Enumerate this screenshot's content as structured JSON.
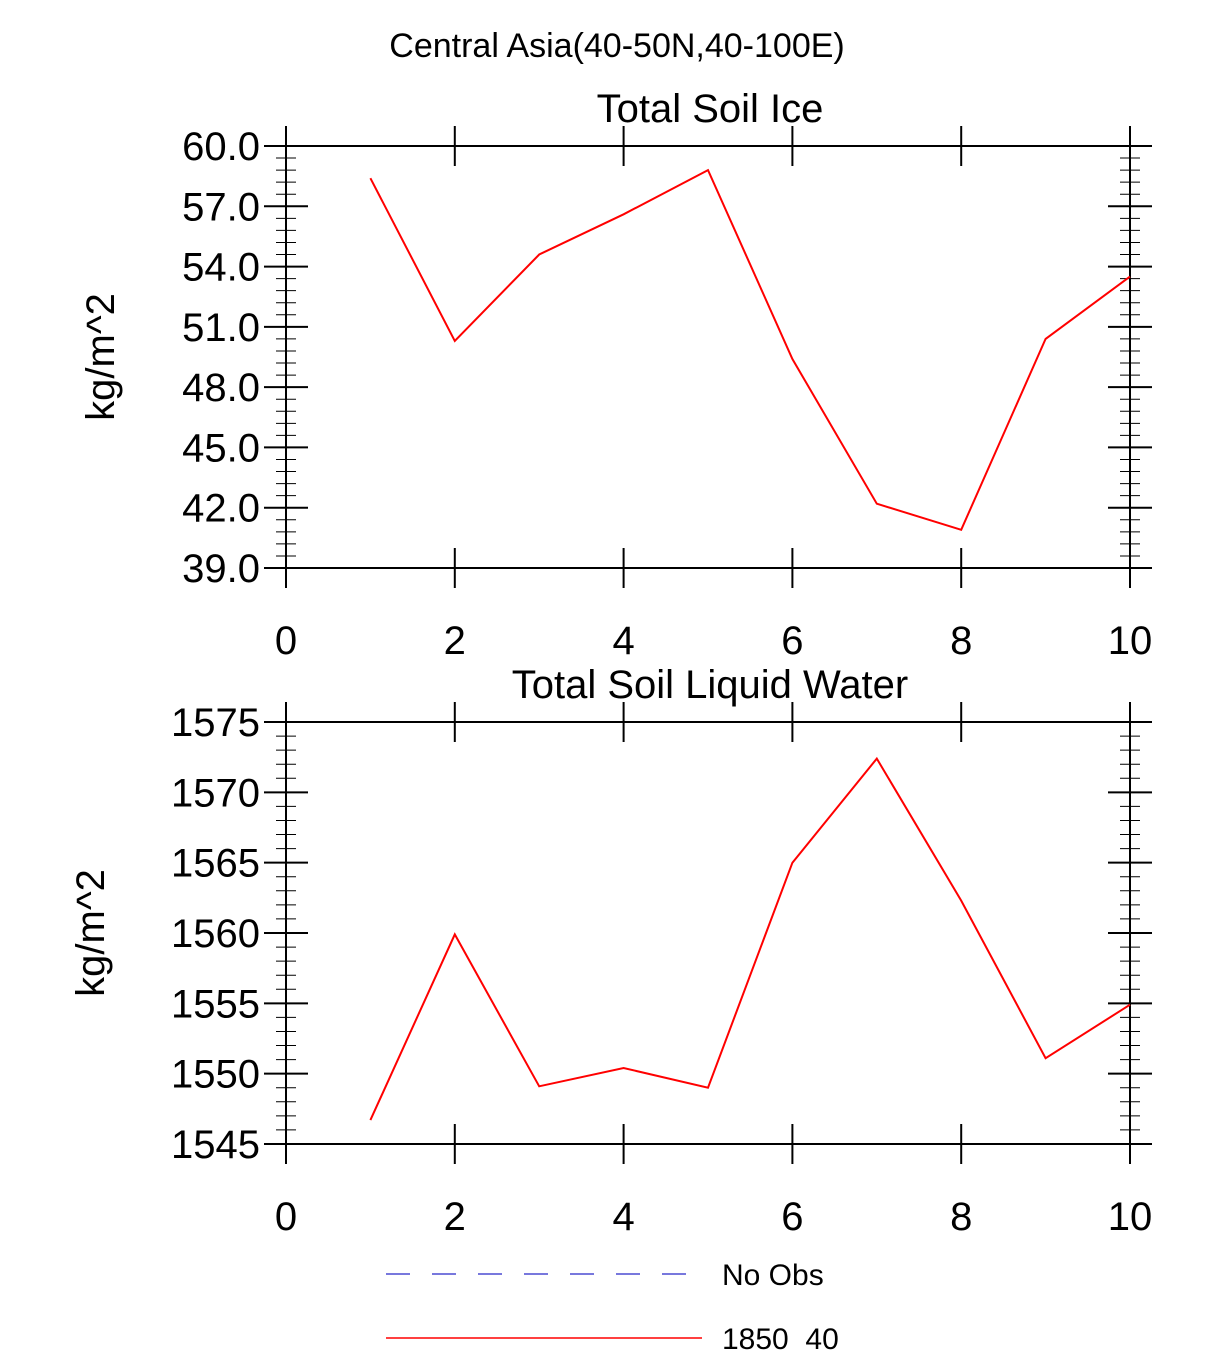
{
  "figure": {
    "suptitle": "Central Asia(40-50N,40-100E)"
  },
  "legend": {
    "entries": [
      {
        "label": "No Obs",
        "color": "#4b4bd2",
        "style": "dashed"
      },
      {
        "label": "1850_40",
        "color": "#ff0000",
        "style": "solid"
      }
    ]
  },
  "chart_data": [
    {
      "type": "line",
      "title": "Total Soil Ice",
      "xlabel": "",
      "ylabel": "kg/m^2",
      "xlim": [
        0,
        10
      ],
      "ylim": [
        39,
        60
      ],
      "xticks": [
        0,
        2,
        4,
        6,
        8,
        10
      ],
      "xtick_labels": [
        "0",
        "2",
        "4",
        "6",
        "8",
        "10"
      ],
      "yticks": [
        39,
        42,
        45,
        48,
        51,
        54,
        57,
        60
      ],
      "ytick_labels": [
        "39.0",
        "42.0",
        "45.0",
        "48.0",
        "51.0",
        "54.0",
        "57.0",
        "60.0"
      ],
      "yminor_step": 0.6,
      "grid": false,
      "series": [
        {
          "name": "1850_40",
          "color": "#ff0000",
          "x": [
            1,
            2,
            3,
            4,
            5,
            6,
            7,
            8,
            9,
            10
          ],
          "y": [
            58.4,
            50.3,
            54.6,
            56.6,
            58.8,
            49.4,
            42.2,
            40.9,
            50.4,
            53.5
          ]
        }
      ]
    },
    {
      "type": "line",
      "title": "Total Soil Liquid Water",
      "xlabel": "",
      "ylabel": "kg/m^2",
      "xlim": [
        0,
        10
      ],
      "ylim": [
        1545,
        1575
      ],
      "xticks": [
        0,
        2,
        4,
        6,
        8,
        10
      ],
      "xtick_labels": [
        "0",
        "2",
        "4",
        "6",
        "8",
        "10"
      ],
      "yticks": [
        1545,
        1550,
        1555,
        1560,
        1565,
        1570,
        1575
      ],
      "ytick_labels": [
        "1545",
        "1550",
        "1555",
        "1560",
        "1565",
        "1570",
        "1575"
      ],
      "yminor_step": 1,
      "grid": false,
      "series": [
        {
          "name": "1850_40",
          "color": "#ff0000",
          "x": [
            1,
            2,
            3,
            4,
            5,
            6,
            7,
            8,
            9,
            10
          ],
          "y": [
            1546.7,
            1559.9,
            1549.1,
            1550.4,
            1549.0,
            1565.0,
            1572.4,
            1562.3,
            1551.1,
            1554.9
          ]
        }
      ]
    }
  ]
}
